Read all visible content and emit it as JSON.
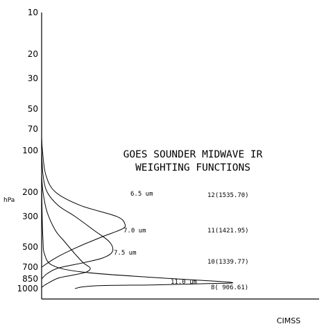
{
  "chart_data": {
    "type": "line",
    "title_lines": [
      "GOES SOUNDER MIDWAVE IR",
      "WEIGHTING FUNCTIONS"
    ],
    "ylabel": "hPa",
    "xlabel": "",
    "y_scale": "log",
    "y_reversed": true,
    "ylim": [
      1000,
      10
    ],
    "xlim": [
      0,
      1
    ],
    "y_ticks": [
      10,
      20,
      30,
      50,
      70,
      100,
      200,
      300,
      500,
      700,
      850,
      1000
    ],
    "grid": false,
    "series": [
      {
        "label": "6.5 um",
        "channel": "12(1535.70)",
        "points": [
          [
            0.0,
            80
          ],
          [
            0.003,
            100
          ],
          [
            0.015,
            150
          ],
          [
            0.05,
            200
          ],
          [
            0.14,
            250
          ],
          [
            0.27,
            300
          ],
          [
            0.3,
            340
          ],
          [
            0.29,
            370
          ],
          [
            0.22,
            420
          ],
          [
            0.13,
            500
          ],
          [
            0.05,
            600
          ],
          [
            0.0,
            700
          ]
        ]
      },
      {
        "label": "7.0 um",
        "channel": "11(1421.95)",
        "points": [
          [
            0.0,
            100
          ],
          [
            0.005,
            150
          ],
          [
            0.02,
            200
          ],
          [
            0.06,
            250
          ],
          [
            0.12,
            300
          ],
          [
            0.19,
            380
          ],
          [
            0.245,
            460
          ],
          [
            0.255,
            540
          ],
          [
            0.22,
            600
          ],
          [
            0.15,
            650
          ],
          [
            0.06,
            710
          ],
          [
            0.02,
            780
          ],
          [
            0.0,
            850
          ]
        ]
      },
      {
        "label": "7.5 um",
        "channel": "10(1339.77)",
        "points": [
          [
            0.0,
            150
          ],
          [
            0.005,
            200
          ],
          [
            0.02,
            280
          ],
          [
            0.05,
            380
          ],
          [
            0.08,
            450
          ],
          [
            0.12,
            560
          ],
          [
            0.15,
            650
          ],
          [
            0.175,
            710
          ],
          [
            0.16,
            760
          ],
          [
            0.11,
            800
          ],
          [
            0.06,
            840
          ],
          [
            0.02,
            920
          ],
          [
            0.0,
            980
          ]
        ]
      },
      {
        "label": "11.0 um",
        "channel": "8( 906.61)",
        "points": [
          [
            0.0,
            170
          ],
          [
            0.002,
            300
          ],
          [
            0.005,
            450
          ],
          [
            0.01,
            560
          ],
          [
            0.04,
            680
          ],
          [
            0.15,
            760
          ],
          [
            0.4,
            830
          ],
          [
            0.68,
            900
          ],
          [
            0.6,
            920
          ],
          [
            0.4,
            940
          ],
          [
            0.22,
            950
          ],
          [
            0.15,
            970
          ],
          [
            0.12,
            1000
          ]
        ]
      }
    ]
  },
  "credit": "CIMSS",
  "colors": {
    "foreground": "#000000",
    "background": "#ffffff"
  }
}
